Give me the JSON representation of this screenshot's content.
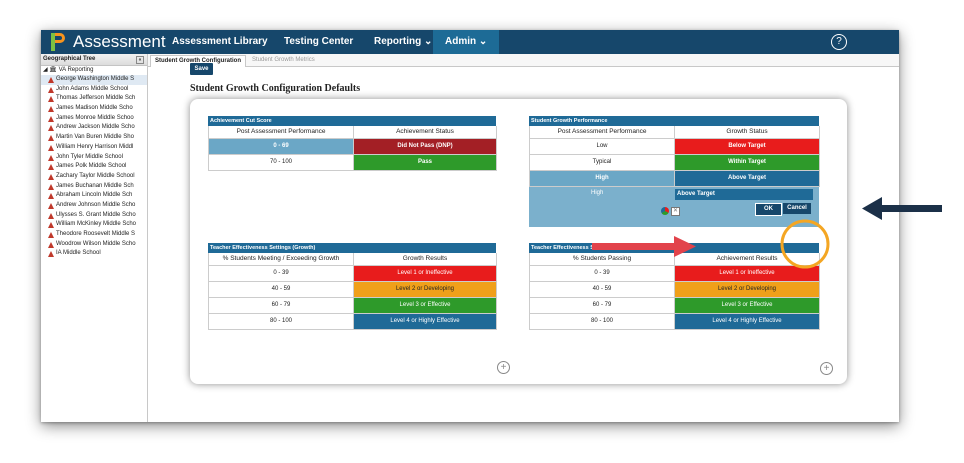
{
  "app": {
    "title": "Assessment"
  },
  "nav": {
    "items": [
      "Assessment Library",
      "Testing Center",
      "Reporting ⌄",
      "Admin ⌄"
    ],
    "help_icon": "?"
  },
  "sidebar": {
    "header": "Geographical Tree",
    "collapse": "«",
    "root": "◢ 🏛 VA Reporting",
    "items": [
      "George Washington Middle S",
      "John Adams Middle School",
      "Thomas Jefferson Middle Sch",
      "James Madison Middle Scho",
      "James Monroe Middle Schoo",
      "Andrew Jackson Middle Scho",
      "Martin Van Buren Middle Sho",
      "William Henry Harrison Middl",
      "John Tyler Middle School",
      "James Polk Middle School",
      "Zachary Taylor Middle School",
      "James Buchanan Middle Sch",
      "Abraham Lincoln Middle Sch",
      "Andrew Johnson Middle Scho",
      "Ulysses S. Grant Middle Scho",
      "William McKinley Middle Scho",
      "Theodore Roosevelt Middle S",
      "Woodrow Wilson Middle Scho",
      "IA Middle School"
    ]
  },
  "tabs": [
    "Student Growth Configuration",
    "Student Growth Metrics"
  ],
  "toolbar": {
    "save_label": "Save"
  },
  "page": {
    "title": "Student Growth Configuration Defaults"
  },
  "achievement": {
    "title": "Achievement Cut Score",
    "headers": [
      "Post Assessment Performance",
      "Achievement Status"
    ],
    "rows": [
      {
        "range": "0 - 69",
        "status": "Did Not Pass (DNP)"
      },
      {
        "range": "70 - 100",
        "status": "Pass"
      }
    ]
  },
  "growth": {
    "title": "Student Growth Performance",
    "headers": [
      "Post Assessment Performance",
      "Growth Status"
    ],
    "rows": [
      {
        "level": "Low",
        "status": "Below Target"
      },
      {
        "level": "Typical",
        "status": "Within Target"
      },
      {
        "level": "High",
        "status": "Above Target"
      }
    ],
    "edit": {
      "label": "High",
      "value": "Above Target",
      "ok": "OK",
      "cancel": "Cancel"
    }
  },
  "te_growth": {
    "title": "Teacher Effectiveness Settings (Growth)",
    "headers": [
      "% Students Meeting / Exceeding Growth",
      "Growth Results"
    ],
    "rows": [
      {
        "range": "0 - 39",
        "result": "Level 1 or Ineffective"
      },
      {
        "range": "40 - 59",
        "result": "Level 2 or Developing"
      },
      {
        "range": "60 - 79",
        "result": "Level 3 or Effective"
      },
      {
        "range": "80 - 100",
        "result": "Level 4 or Highly Effective"
      }
    ]
  },
  "te_achievement": {
    "title": "Teacher Effectiveness Settings (Achievement)",
    "headers": [
      "% Students Passing",
      "Achievement Results"
    ],
    "rows": [
      {
        "range": "0 - 39",
        "result": "Level 1 or Ineffective"
      },
      {
        "range": "40 - 59",
        "result": "Level 2 or Developing"
      },
      {
        "range": "60 - 79",
        "result": "Level 3 or Effective"
      },
      {
        "range": "80 - 100",
        "result": "Level 4 or Highly Effective"
      }
    ]
  },
  "add_icon": "+"
}
